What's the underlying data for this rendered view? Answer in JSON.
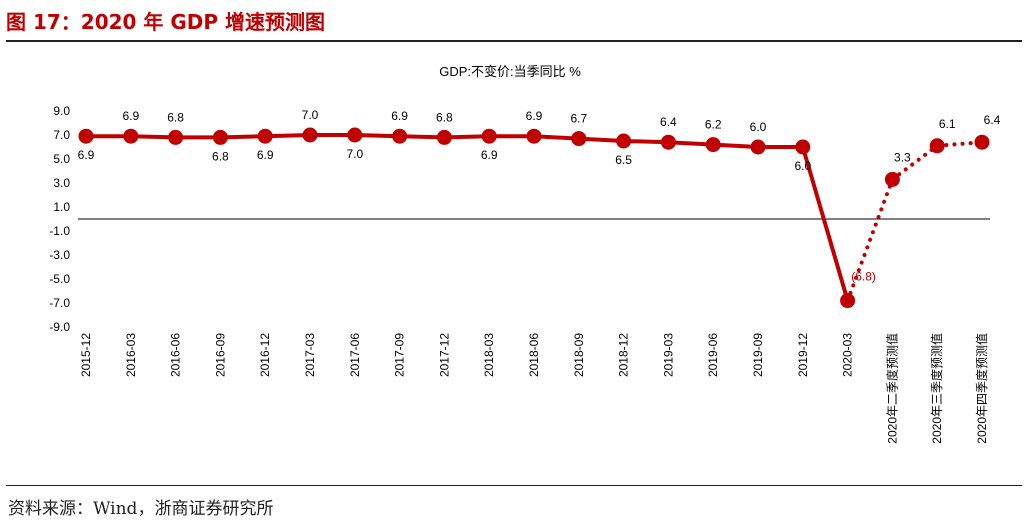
{
  "figure": {
    "title": "图 17：2020 年 GDP 增速预测图",
    "source": "资料来源：Wind，浙商证券研究所"
  },
  "chart_data": {
    "type": "line",
    "title": "GDP:不变价:当季同比 %",
    "xlabel": "",
    "ylabel": "",
    "ylim": [
      -9.0,
      9.0
    ],
    "yticks": [
      "9.0",
      "7.0",
      "5.0",
      "3.0",
      "1.0",
      "-1.0",
      "-3.0",
      "-5.0",
      "-7.0",
      "-9.0"
    ],
    "categories": [
      "2015-12",
      "2016-03",
      "2016-06",
      "2016-09",
      "2016-12",
      "2017-03",
      "2017-06",
      "2017-09",
      "2017-12",
      "2018-03",
      "2018-06",
      "2018-09",
      "2018-12",
      "2019-03",
      "2019-06",
      "2019-09",
      "2019-12",
      "2020-03",
      "2020年二季度预测值",
      "2020年三季度预测值",
      "2020年四季度预测值"
    ],
    "series": [
      {
        "values": [
          6.9,
          6.9,
          6.8,
          6.8,
          6.9,
          7.0,
          7.0,
          6.9,
          6.8,
          6.9,
          6.9,
          6.7,
          6.5,
          6.4,
          6.2,
          6.0,
          6.0,
          -6.8,
          3.3,
          6.1,
          6.4
        ]
      }
    ],
    "actual_count": 18,
    "data_labels": [
      "6.9",
      "6.9",
      "6.8",
      "6.8",
      "6.9",
      "7.0",
      "7.0",
      "6.9",
      "6.8",
      "6.9",
      "6.9",
      "6.7",
      "6.5",
      "6.4",
      "6.2",
      "6.0",
      "6.0",
      "(6.8)",
      "3.3",
      "6.1",
      "6.4"
    ],
    "grid": false,
    "line_color": "#c00000",
    "label_color_negative": "#c00000"
  }
}
